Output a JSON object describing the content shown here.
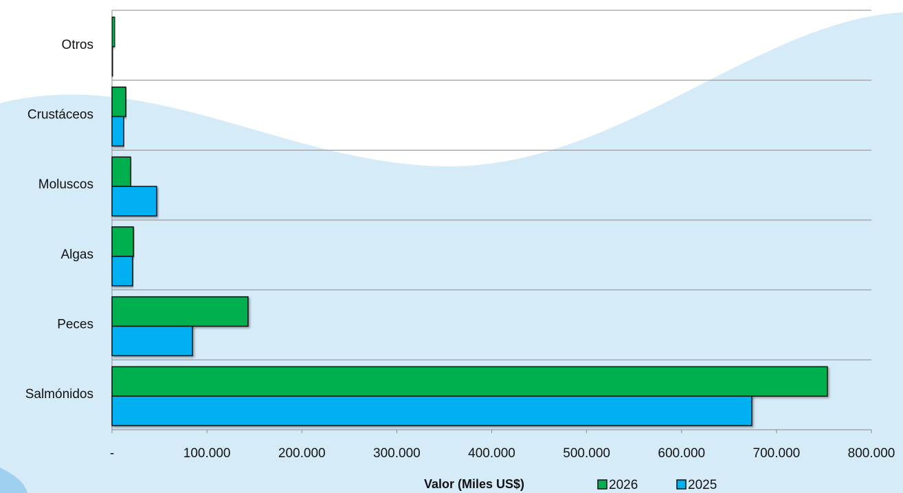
{
  "chart_data": {
    "type": "hbar",
    "categories": [
      "Otros",
      "Crustáceos",
      "Moluscos",
      "Algas",
      "Peces",
      "Salmónidos"
    ],
    "series": [
      {
        "name": "2026",
        "color": "#00b050",
        "values": [
          3000,
          14500,
          19500,
          22500,
          143300,
          753600
        ]
      },
      {
        "name": "2025",
        "color": "#00b0f0",
        "values": [
          1000,
          12300,
          47000,
          21700,
          84700,
          674000
        ]
      }
    ],
    "xlabel": "Valor (Miles US$)",
    "xlim": [
      0,
      800000
    ],
    "xticks": [
      {
        "value": 0,
        "label": "-"
      },
      {
        "value": 100000,
        "label": "100.000"
      },
      {
        "value": 200000,
        "label": "200.000"
      },
      {
        "value": 300000,
        "label": "300.000"
      },
      {
        "value": 400000,
        "label": "400.000"
      },
      {
        "value": 500000,
        "label": "500.000"
      },
      {
        "value": 600000,
        "label": "600.000"
      },
      {
        "value": 700000,
        "label": "700.000"
      },
      {
        "value": 800000,
        "label": "800.000"
      }
    ],
    "legend": "bottom"
  }
}
